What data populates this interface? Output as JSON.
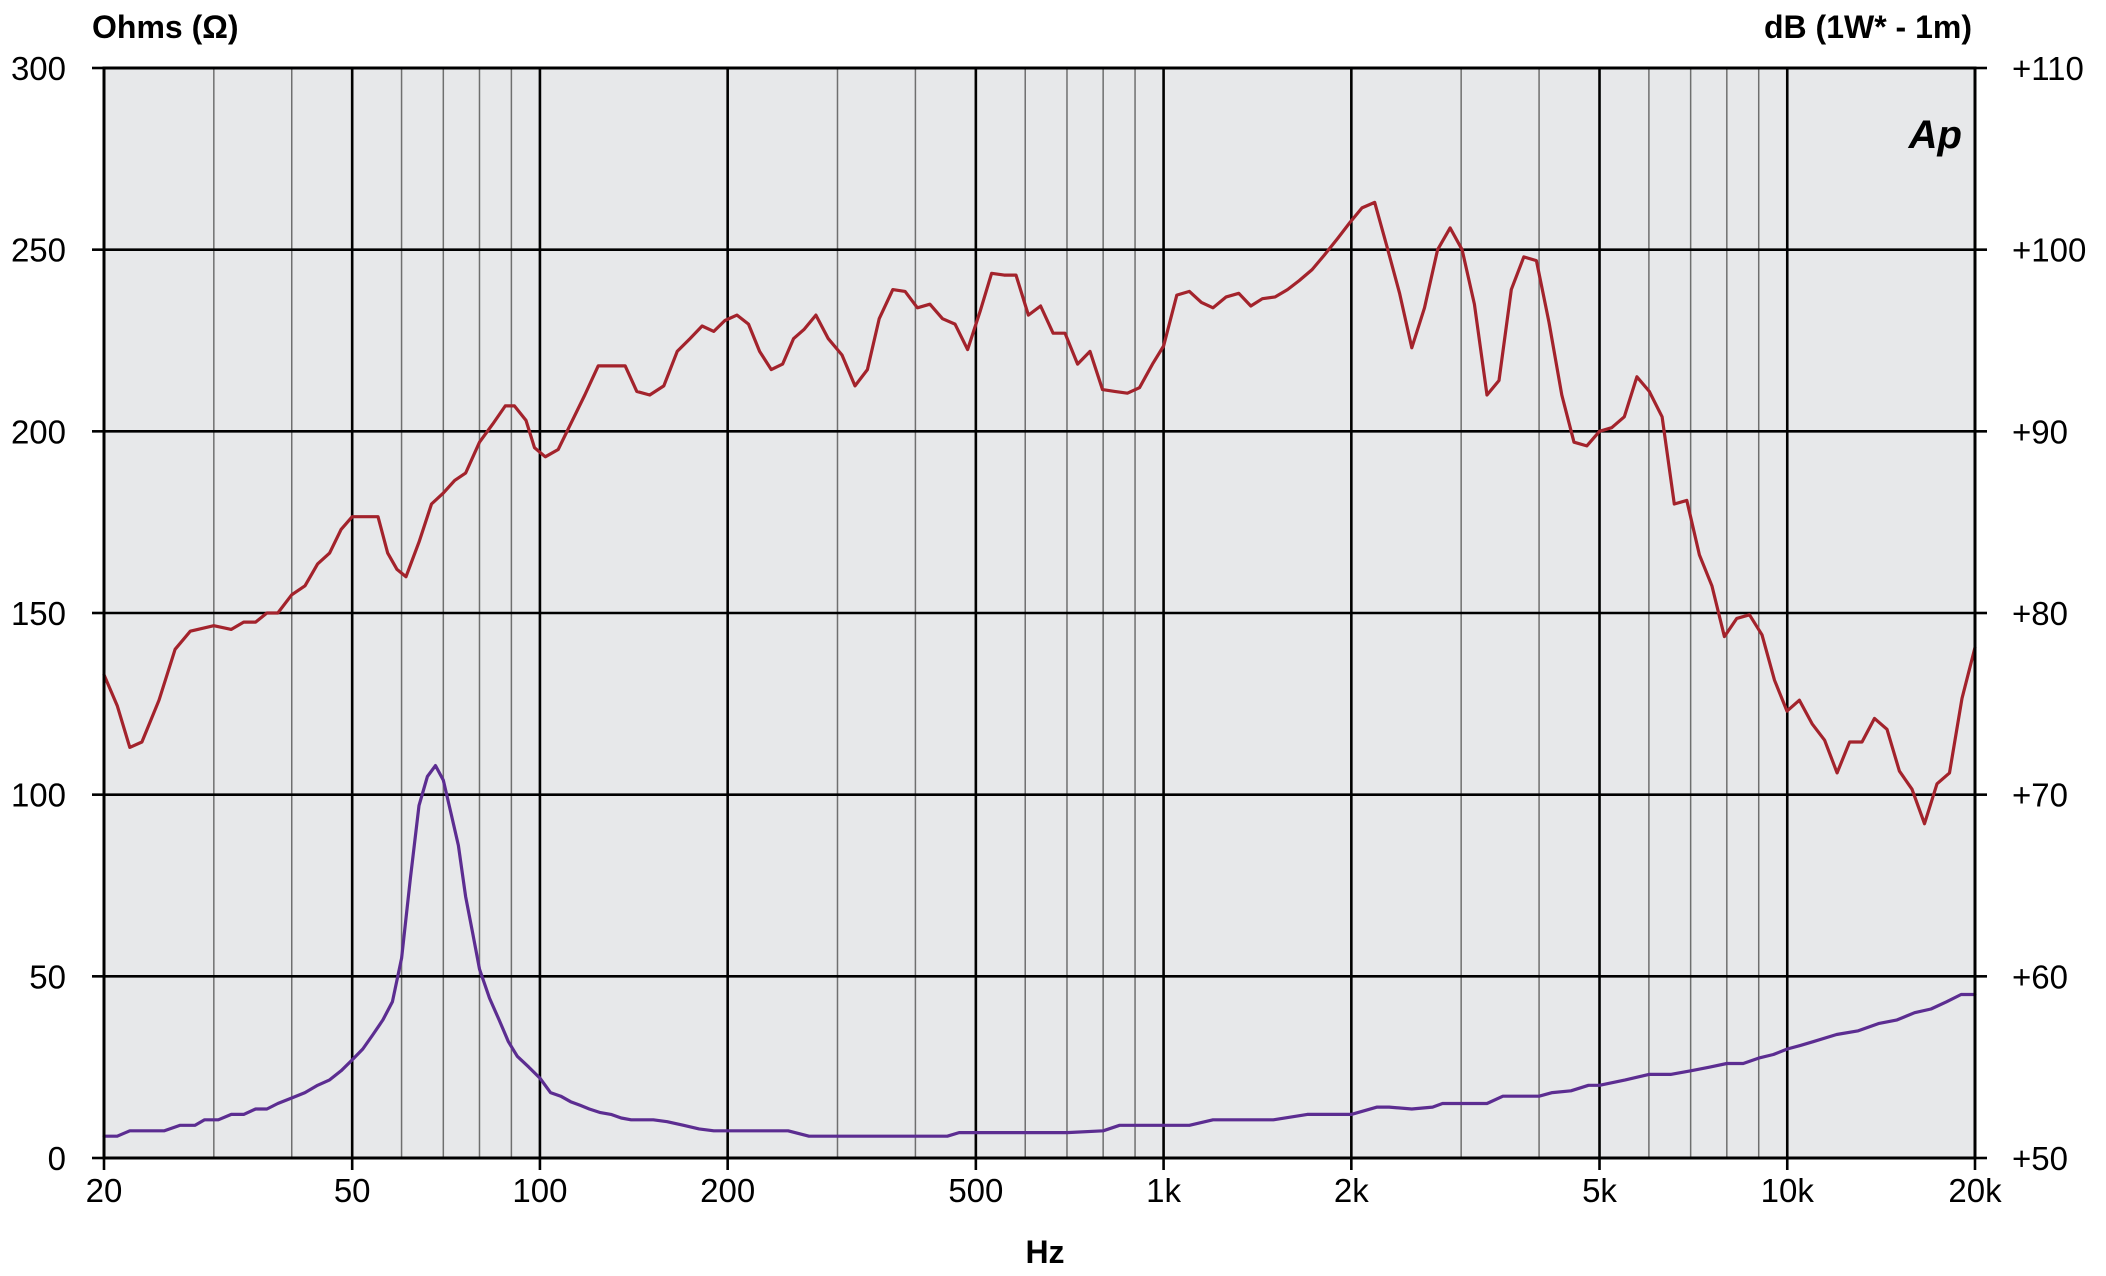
{
  "chart_data": {
    "type": "line",
    "title": "",
    "xlabel": "Hz",
    "ylabel_left": "Ohms (Ω)",
    "ylabel_right": "dB (1W* - 1m)",
    "logo_text": "Ap",
    "x_scale": "log",
    "xlim": [
      20,
      20000
    ],
    "ylim_left": [
      0,
      300
    ],
    "ylim_right": [
      50,
      110
    ],
    "grid": true,
    "x_ticks": [
      {
        "value": 20,
        "label": "20"
      },
      {
        "value": 50,
        "label": "50"
      },
      {
        "value": 100,
        "label": "100"
      },
      {
        "value": 200,
        "label": "200"
      },
      {
        "value": 500,
        "label": "500"
      },
      {
        "value": 1000,
        "label": "1k"
      },
      {
        "value": 2000,
        "label": "2k"
      },
      {
        "value": 5000,
        "label": "5k"
      },
      {
        "value": 10000,
        "label": "10k"
      },
      {
        "value": 20000,
        "label": "20k"
      }
    ],
    "y_ticks_left": [
      {
        "value": 0,
        "label": "0"
      },
      {
        "value": 50,
        "label": "50"
      },
      {
        "value": 100,
        "label": "100"
      },
      {
        "value": 150,
        "label": "150"
      },
      {
        "value": 200,
        "label": "200"
      },
      {
        "value": 250,
        "label": "250"
      },
      {
        "value": 300,
        "label": "300"
      }
    ],
    "y_ticks_right": [
      {
        "value": 50,
        "label": "+50"
      },
      {
        "value": 60,
        "label": "+60"
      },
      {
        "value": 70,
        "label": "+70"
      },
      {
        "value": 80,
        "label": "+80"
      },
      {
        "value": 90,
        "label": "+90"
      },
      {
        "value": 100,
        "label": "+100"
      },
      {
        "value": 110,
        "label": "+110"
      }
    ],
    "series": [
      {
        "axis": "right",
        "color": "#a3232c",
        "points": [
          [
            20,
            76.6
          ],
          [
            21,
            74.9
          ],
          [
            22,
            72.6
          ],
          [
            23,
            72.9
          ],
          [
            24.5,
            75.2
          ],
          [
            26,
            78.0
          ],
          [
            27.5,
            79.0
          ],
          [
            30,
            79.3
          ],
          [
            32,
            79.1
          ],
          [
            33.5,
            79.5
          ],
          [
            35,
            79.5
          ],
          [
            36.5,
            80.0
          ],
          [
            38,
            80.0
          ],
          [
            40,
            81.0
          ],
          [
            42,
            81.5
          ],
          [
            44,
            82.7
          ],
          [
            46,
            83.3
          ],
          [
            48,
            84.6
          ],
          [
            50,
            85.3
          ],
          [
            52,
            85.3
          ],
          [
            55,
            85.3
          ],
          [
            57,
            83.3
          ],
          [
            59,
            82.4
          ],
          [
            61,
            82.0
          ],
          [
            64,
            83.9
          ],
          [
            67,
            86.0
          ],
          [
            70,
            86.6
          ],
          [
            73,
            87.3
          ],
          [
            76,
            87.7
          ],
          [
            80,
            89.4
          ],
          [
            84,
            90.4
          ],
          [
            88,
            91.4
          ],
          [
            91,
            91.4
          ],
          [
            95,
            90.6
          ],
          [
            98,
            89.1
          ],
          [
            102,
            88.6
          ],
          [
            107,
            89.0
          ],
          [
            112,
            90.4
          ],
          [
            118,
            92.0
          ],
          [
            124,
            93.6
          ],
          [
            130,
            93.6
          ],
          [
            137,
            93.6
          ],
          [
            143,
            92.2
          ],
          [
            150,
            92.0
          ],
          [
            158,
            92.5
          ],
          [
            166,
            94.4
          ],
          [
            174,
            95.1
          ],
          [
            182,
            95.8
          ],
          [
            190,
            95.5
          ],
          [
            198,
            96.1
          ],
          [
            207,
            96.4
          ],
          [
            216,
            95.9
          ],
          [
            225,
            94.4
          ],
          [
            235,
            93.4
          ],
          [
            245,
            93.7
          ],
          [
            255,
            95.1
          ],
          [
            265,
            95.6
          ],
          [
            277,
            96.4
          ],
          [
            290,
            95.1
          ],
          [
            305,
            94.2
          ],
          [
            320,
            92.5
          ],
          [
            335,
            93.4
          ],
          [
            350,
            96.2
          ],
          [
            368,
            97.8
          ],
          [
            385,
            97.7
          ],
          [
            403,
            96.8
          ],
          [
            422,
            97.0
          ],
          [
            442,
            96.2
          ],
          [
            463,
            95.9
          ],
          [
            485,
            94.5
          ],
          [
            508,
            96.6
          ],
          [
            530,
            98.7
          ],
          [
            555,
            98.6
          ],
          [
            580,
            98.6
          ],
          [
            607,
            96.4
          ],
          [
            635,
            96.9
          ],
          [
            665,
            95.4
          ],
          [
            695,
            95.4
          ],
          [
            728,
            93.7
          ],
          [
            762,
            94.4
          ],
          [
            798,
            92.3
          ],
          [
            835,
            92.2
          ],
          [
            875,
            92.1
          ],
          [
            915,
            92.4
          ],
          [
            960,
            93.7
          ],
          [
            1000,
            94.7
          ],
          [
            1050,
            97.5
          ],
          [
            1100,
            97.7
          ],
          [
            1150,
            97.1
          ],
          [
            1200,
            96.8
          ],
          [
            1260,
            97.4
          ],
          [
            1320,
            97.6
          ],
          [
            1380,
            96.9
          ],
          [
            1440,
            97.3
          ],
          [
            1510,
            97.4
          ],
          [
            1580,
            97.8
          ],
          [
            1650,
            98.3
          ],
          [
            1730,
            98.9
          ],
          [
            1810,
            99.7
          ],
          [
            1900,
            100.6
          ],
          [
            1990,
            101.5
          ],
          [
            2080,
            102.3
          ],
          [
            2180,
            102.6
          ],
          [
            2280,
            100.2
          ],
          [
            2390,
            97.6
          ],
          [
            2500,
            94.6
          ],
          [
            2620,
            96.8
          ],
          [
            2750,
            100.0
          ],
          [
            2880,
            101.2
          ],
          [
            3010,
            100.0
          ],
          [
            3150,
            97.0
          ],
          [
            3300,
            92.0
          ],
          [
            3450,
            92.8
          ],
          [
            3610,
            97.8
          ],
          [
            3780,
            99.6
          ],
          [
            3960,
            99.4
          ],
          [
            4150,
            96.0
          ],
          [
            4350,
            92.0
          ],
          [
            4550,
            89.4
          ],
          [
            4770,
            89.2
          ],
          [
            5000,
            90.0
          ],
          [
            5230,
            90.2
          ],
          [
            5480,
            90.8
          ],
          [
            5740,
            93.0
          ],
          [
            6010,
            92.2
          ],
          [
            6300,
            90.8
          ],
          [
            6590,
            86.0
          ],
          [
            6900,
            86.2
          ],
          [
            7230,
            83.2
          ],
          [
            7570,
            81.5
          ],
          [
            7930,
            78.7
          ],
          [
            8300,
            79.7
          ],
          [
            8700,
            79.9
          ],
          [
            9110,
            78.8
          ],
          [
            9540,
            76.3
          ],
          [
            9990,
            74.6
          ],
          [
            10460,
            75.2
          ],
          [
            10960,
            73.9
          ],
          [
            11480,
            73.0
          ],
          [
            12020,
            71.2
          ],
          [
            12590,
            72.9
          ],
          [
            13180,
            72.9
          ],
          [
            13800,
            74.2
          ],
          [
            14450,
            73.6
          ],
          [
            15130,
            71.3
          ],
          [
            15850,
            70.3
          ],
          [
            16600,
            68.4
          ],
          [
            17380,
            70.6
          ],
          [
            18200,
            71.2
          ],
          [
            19060,
            75.3
          ],
          [
            20000,
            78.1
          ]
        ]
      },
      {
        "axis": "left",
        "color": "#5c2d91",
        "points": [
          [
            20,
            6
          ],
          [
            21,
            6
          ],
          [
            22,
            7.5
          ],
          [
            23,
            7.5
          ],
          [
            24,
            7.5
          ],
          [
            25,
            7.5
          ],
          [
            26.5,
            9
          ],
          [
            28,
            9
          ],
          [
            29,
            10.5
          ],
          [
            30.5,
            10.5
          ],
          [
            32,
            12
          ],
          [
            33.5,
            12
          ],
          [
            35,
            13.5
          ],
          [
            36.5,
            13.5
          ],
          [
            38,
            15
          ],
          [
            40,
            16.5
          ],
          [
            42,
            18
          ],
          [
            44,
            20
          ],
          [
            46,
            21.5
          ],
          [
            48,
            24
          ],
          [
            50,
            27
          ],
          [
            52,
            30
          ],
          [
            54,
            34
          ],
          [
            56,
            38
          ],
          [
            58,
            43
          ],
          [
            60,
            55
          ],
          [
            62,
            77
          ],
          [
            64,
            97
          ],
          [
            66,
            105
          ],
          [
            68,
            108
          ],
          [
            70,
            104
          ],
          [
            72,
            95
          ],
          [
            74,
            86
          ],
          [
            76,
            72
          ],
          [
            78,
            62
          ],
          [
            80,
            52
          ],
          [
            83,
            44
          ],
          [
            86,
            38
          ],
          [
            89,
            32
          ],
          [
            92,
            28
          ],
          [
            96,
            25
          ],
          [
            100,
            22
          ],
          [
            104,
            18
          ],
          [
            108,
            17
          ],
          [
            112,
            15.5
          ],
          [
            116,
            14.5
          ],
          [
            120,
            13.5
          ],
          [
            125,
            12.5
          ],
          [
            130,
            12
          ],
          [
            135,
            11
          ],
          [
            140,
            10.5
          ],
          [
            146,
            10.5
          ],
          [
            152,
            10.5
          ],
          [
            160,
            10
          ],
          [
            170,
            9
          ],
          [
            180,
            8
          ],
          [
            190,
            7.5
          ],
          [
            200,
            7.5
          ],
          [
            250,
            7.5
          ],
          [
            270,
            6
          ],
          [
            300,
            6
          ],
          [
            350,
            6
          ],
          [
            400,
            6
          ],
          [
            450,
            6
          ],
          [
            470,
            7
          ],
          [
            500,
            7
          ],
          [
            550,
            7
          ],
          [
            600,
            7
          ],
          [
            700,
            7
          ],
          [
            800,
            7.5
          ],
          [
            850,
            9
          ],
          [
            900,
            9
          ],
          [
            1000,
            9
          ],
          [
            1100,
            9
          ],
          [
            1200,
            10.5
          ],
          [
            1300,
            10.5
          ],
          [
            1400,
            10.5
          ],
          [
            1500,
            10.5
          ],
          [
            1700,
            12
          ],
          [
            1900,
            12
          ],
          [
            2000,
            12
          ],
          [
            2200,
            14
          ],
          [
            2300,
            14
          ],
          [
            2500,
            13.5
          ],
          [
            2700,
            14
          ],
          [
            2800,
            15
          ],
          [
            3000,
            15
          ],
          [
            3300,
            15
          ],
          [
            3500,
            17
          ],
          [
            4000,
            17
          ],
          [
            4200,
            18
          ],
          [
            4500,
            18.5
          ],
          [
            4800,
            20
          ],
          [
            5000,
            20
          ],
          [
            5500,
            21.5
          ],
          [
            6000,
            23
          ],
          [
            6500,
            23
          ],
          [
            7000,
            24
          ],
          [
            7500,
            25
          ],
          [
            8000,
            26
          ],
          [
            8500,
            26
          ],
          [
            9000,
            27.5
          ],
          [
            9500,
            28.5
          ],
          [
            10000,
            30
          ],
          [
            10500,
            31
          ],
          [
            11000,
            32
          ],
          [
            12000,
            34
          ],
          [
            13000,
            35
          ],
          [
            14000,
            37
          ],
          [
            15000,
            38
          ],
          [
            16000,
            40
          ],
          [
            17000,
            41
          ],
          [
            18000,
            43
          ],
          [
            19000,
            45
          ],
          [
            20000,
            45
          ]
        ]
      }
    ]
  }
}
